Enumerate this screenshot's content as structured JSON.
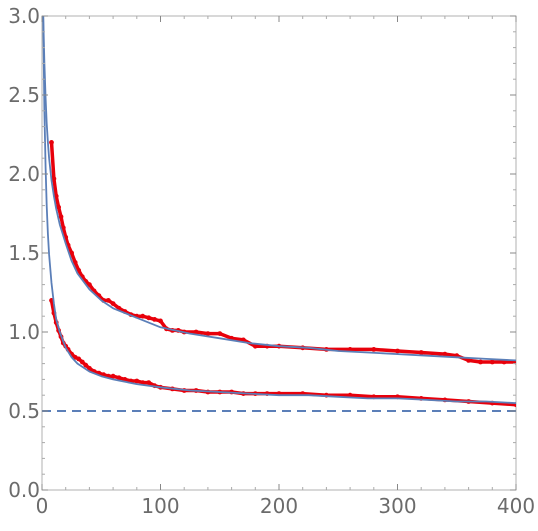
{
  "chart_data": {
    "type": "line",
    "title": "",
    "xlabel": "",
    "ylabel": "",
    "xlim": [
      0,
      400
    ],
    "ylim": [
      0.0,
      3.0
    ],
    "x_ticks": [
      0,
      100,
      200,
      300,
      400
    ],
    "y_ticks": [
      0.0,
      0.5,
      1.0,
      1.5,
      2.0,
      2.5,
      3.0
    ],
    "x_tick_labels": [
      "0",
      "100",
      "200",
      "300",
      "400"
    ],
    "y_tick_labels": [
      "0.0",
      "0.5",
      "1.0",
      "1.5",
      "2.0",
      "2.5",
      "3.0"
    ],
    "grid": false,
    "legend": "none",
    "reference_line": {
      "y": 0.5,
      "style": "dashed",
      "color": "#5b7fb8"
    },
    "fit_color": "#5b7fb8",
    "data_color": "#e8000b",
    "series": [
      {
        "kind": "data",
        "x": [
          8,
          10,
          12,
          14,
          16,
          18,
          20,
          22,
          25,
          28,
          31,
          34,
          37,
          40,
          44,
          48,
          52,
          56,
          60,
          65,
          70,
          75,
          80,
          85,
          90,
          95,
          100,
          105,
          110,
          115,
          120,
          130,
          140,
          150,
          160,
          170,
          180,
          190,
          200,
          220,
          240,
          260,
          280,
          300,
          320,
          340,
          350,
          360,
          370,
          380,
          390,
          400
        ],
        "y": [
          2.2,
          1.97,
          1.86,
          1.79,
          1.73,
          1.66,
          1.6,
          1.55,
          1.5,
          1.44,
          1.39,
          1.35,
          1.32,
          1.3,
          1.26,
          1.23,
          1.2,
          1.2,
          1.18,
          1.15,
          1.13,
          1.11,
          1.1,
          1.1,
          1.09,
          1.08,
          1.07,
          1.02,
          1.01,
          1.01,
          1.0,
          1.0,
          0.99,
          0.99,
          0.96,
          0.95,
          0.91,
          0.91,
          0.91,
          0.9,
          0.89,
          0.89,
          0.89,
          0.88,
          0.87,
          0.86,
          0.85,
          0.82,
          0.81,
          0.81,
          0.81,
          0.81
        ]
      },
      {
        "kind": "fit",
        "x": [
          1,
          2,
          3,
          4,
          5,
          6,
          8,
          10,
          12,
          15,
          20,
          25,
          30,
          40,
          50,
          60,
          80,
          100,
          125,
          150,
          175,
          200,
          225,
          250,
          275,
          300,
          325,
          350,
          375,
          400
        ],
        "y": [
          3.0,
          2.7,
          2.48,
          2.32,
          2.2,
          2.1,
          1.96,
          1.86,
          1.78,
          1.68,
          1.56,
          1.45,
          1.37,
          1.27,
          1.2,
          1.15,
          1.09,
          1.03,
          0.99,
          0.96,
          0.93,
          0.91,
          0.9,
          0.88,
          0.87,
          0.86,
          0.85,
          0.84,
          0.83,
          0.82
        ]
      },
      {
        "kind": "data",
        "x": [
          8,
          10,
          12,
          14,
          16,
          18,
          20,
          22,
          25,
          28,
          31,
          34,
          37,
          40,
          44,
          48,
          52,
          56,
          60,
          65,
          70,
          75,
          80,
          85,
          90,
          95,
          100,
          110,
          120,
          130,
          140,
          150,
          160,
          170,
          180,
          190,
          200,
          220,
          240,
          260,
          280,
          300,
          320,
          340,
          360,
          380,
          400
        ],
        "y": [
          1.2,
          1.12,
          1.06,
          1.01,
          0.97,
          0.93,
          0.91,
          0.89,
          0.86,
          0.84,
          0.83,
          0.81,
          0.79,
          0.77,
          0.75,
          0.74,
          0.73,
          0.72,
          0.72,
          0.71,
          0.7,
          0.69,
          0.69,
          0.68,
          0.68,
          0.66,
          0.65,
          0.64,
          0.63,
          0.63,
          0.62,
          0.62,
          0.62,
          0.61,
          0.61,
          0.61,
          0.61,
          0.61,
          0.6,
          0.6,
          0.59,
          0.59,
          0.58,
          0.57,
          0.56,
          0.55,
          0.54
        ]
      },
      {
        "kind": "fit",
        "x": [
          1,
          2,
          3,
          4,
          5,
          6,
          8,
          10,
          12,
          15,
          20,
          25,
          30,
          40,
          50,
          60,
          80,
          100,
          125,
          150,
          175,
          200,
          225,
          250,
          275,
          300,
          325,
          350,
          375,
          400
        ],
        "y": [
          3.0,
          2.4,
          2.04,
          1.8,
          1.62,
          1.49,
          1.31,
          1.18,
          1.08,
          1.0,
          0.9,
          0.84,
          0.8,
          0.75,
          0.72,
          0.7,
          0.67,
          0.65,
          0.63,
          0.62,
          0.61,
          0.6,
          0.6,
          0.59,
          0.58,
          0.58,
          0.57,
          0.56,
          0.56,
          0.55
        ]
      }
    ]
  }
}
